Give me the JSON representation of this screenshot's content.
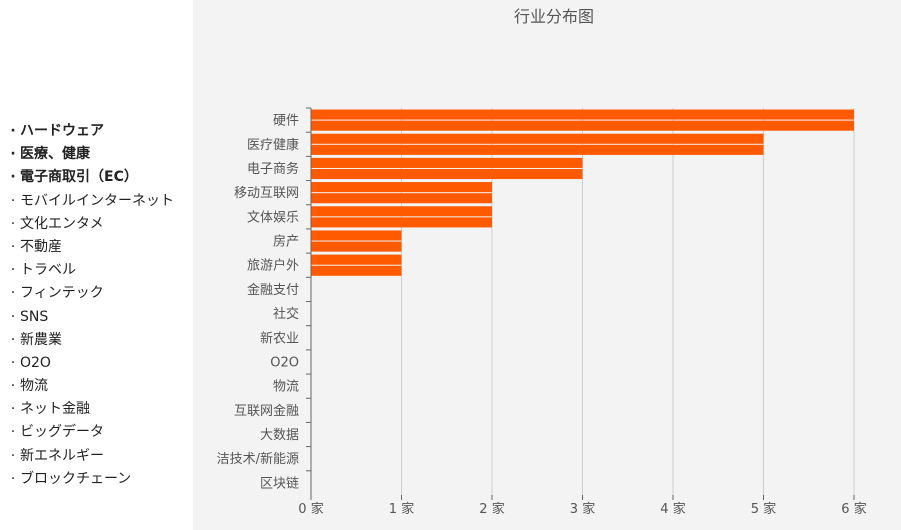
{
  "side_list": [
    {
      "text": "ハードウェア",
      "bold": true
    },
    {
      "text": "医療、健康",
      "bold": true
    },
    {
      "text": "電子商取引（EC）",
      "bold": true
    },
    {
      "text": "モバイルインターネット",
      "bold": false
    },
    {
      "text": "文化エンタメ",
      "bold": false
    },
    {
      "text": "不動産",
      "bold": false
    },
    {
      "text": "トラベル",
      "bold": false
    },
    {
      "text": "フィンテック",
      "bold": false
    },
    {
      "text": "SNS",
      "bold": false
    },
    {
      "text": "新農業",
      "bold": false
    },
    {
      "text": "O2O",
      "bold": false
    },
    {
      "text": "物流",
      "bold": false
    },
    {
      "text": "ネット金融",
      "bold": false
    },
    {
      "text": "ビッグデータ",
      "bold": false
    },
    {
      "text": "新エネルギー",
      "bold": false
    },
    {
      "text": "ブロックチェーン",
      "bold": false
    }
  ],
  "chart_data": {
    "type": "bar",
    "orientation": "horizontal",
    "title": "行业分布图",
    "categories": [
      "硬件",
      "医疗健康",
      "电子商务",
      "移动互联网",
      "文体娱乐",
      "房产",
      "旅游户外",
      "金融支付",
      "社交",
      "新农业",
      "O2O",
      "物流",
      "互联网金融",
      "大数据",
      "洁技术/新能源",
      "区块链"
    ],
    "values": [
      6,
      5,
      3,
      2,
      2,
      1,
      1,
      0,
      0,
      0,
      0,
      0,
      0,
      0,
      0,
      0
    ],
    "xlim": [
      0,
      6
    ],
    "x_ticks": [
      0,
      1,
      2,
      3,
      4,
      5,
      6
    ],
    "x_tick_suffix": " 家",
    "bar_color": "#ff5a00",
    "grid": true
  }
}
